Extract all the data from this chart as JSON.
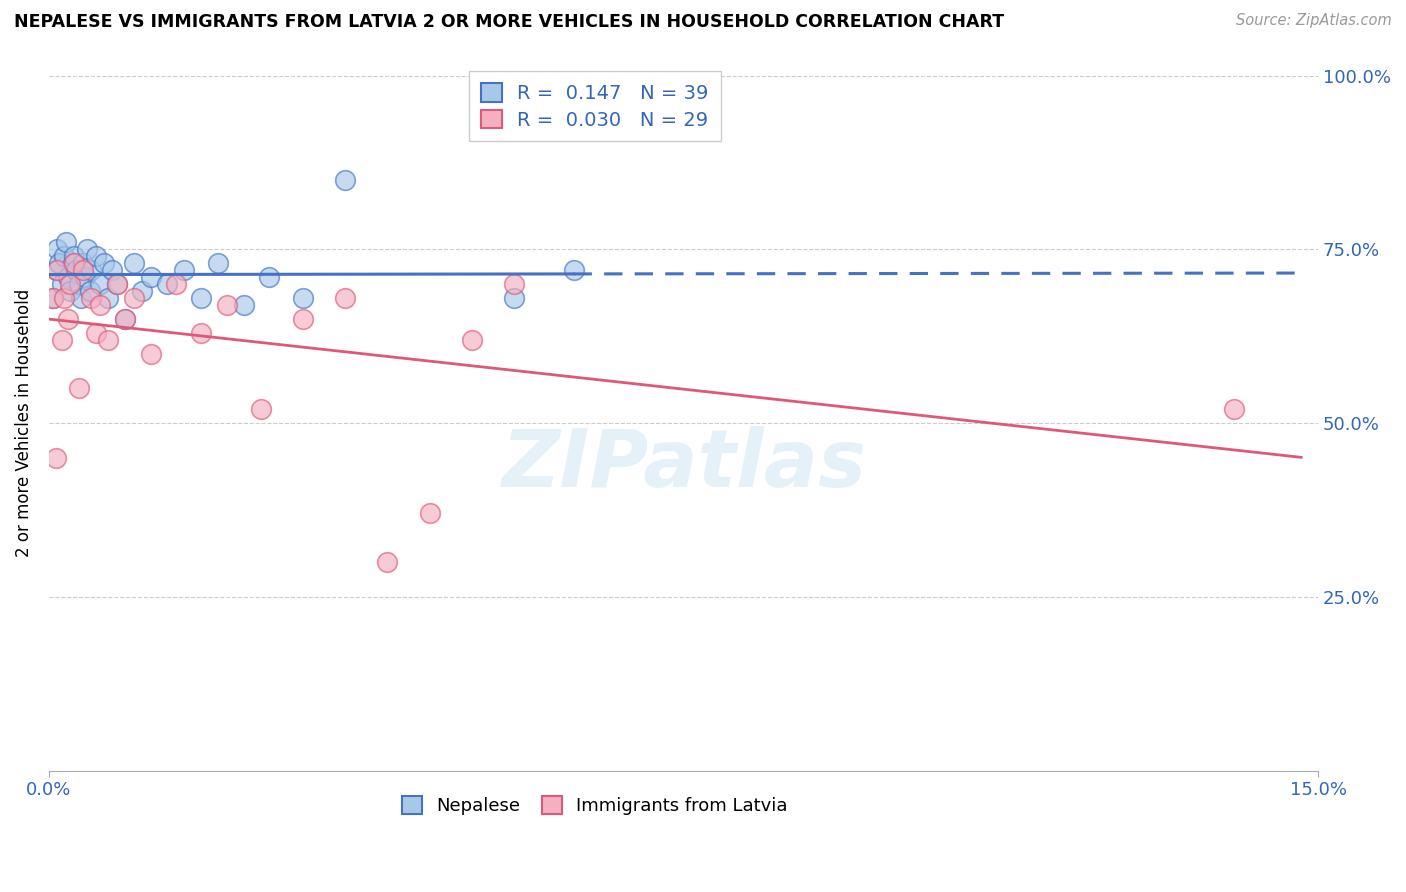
{
  "title": "NEPALESE VS IMMIGRANTS FROM LATVIA 2 OR MORE VEHICLES IN HOUSEHOLD CORRELATION CHART",
  "source": "Source: ZipAtlas.com",
  "ylabel": "2 or more Vehicles in Household",
  "xlim": [
    0.0,
    15.0
  ],
  "ylim": [
    0.0,
    100.0
  ],
  "legend_blue": {
    "R": "0.147",
    "N": "39",
    "label": "Nepalese"
  },
  "legend_pink": {
    "R": "0.030",
    "N": "29",
    "label": "Immigrants from Latvia"
  },
  "color_blue": "#a8c8e8",
  "color_pink": "#f4b0c0",
  "line_blue": "#4472c4",
  "line_pink": "#e05878",
  "watermark": "ZIPatlas",
  "nepalese_x": [
    0.05,
    0.08,
    0.1,
    0.12,
    0.15,
    0.18,
    0.2,
    0.22,
    0.25,
    0.28,
    0.3,
    0.32,
    0.35,
    0.38,
    0.4,
    0.42,
    0.45,
    0.48,
    0.5,
    0.55,
    0.6,
    0.65,
    0.7,
    0.75,
    0.8,
    0.9,
    1.0,
    1.1,
    1.2,
    1.4,
    1.6,
    1.8,
    2.0,
    2.3,
    2.6,
    3.0,
    3.5,
    5.5,
    6.2
  ],
  "nepalese_y": [
    68,
    72,
    75,
    73,
    70,
    74,
    76,
    71,
    69,
    73,
    74,
    72,
    70,
    68,
    73,
    71,
    75,
    69,
    72,
    74,
    70,
    73,
    68,
    72,
    70,
    65,
    73,
    69,
    71,
    70,
    72,
    68,
    73,
    67,
    71,
    68,
    85,
    68,
    72
  ],
  "latvia_x": [
    0.05,
    0.08,
    0.1,
    0.15,
    0.18,
    0.22,
    0.25,
    0.3,
    0.35,
    0.4,
    0.5,
    0.55,
    0.6,
    0.7,
    0.8,
    0.9,
    1.0,
    1.2,
    1.5,
    1.8,
    2.1,
    2.5,
    3.0,
    3.5,
    4.0,
    4.5,
    5.0,
    5.5,
    14.0
  ],
  "latvia_y": [
    68,
    45,
    72,
    62,
    68,
    65,
    70,
    73,
    55,
    72,
    68,
    63,
    67,
    62,
    70,
    65,
    68,
    60,
    70,
    63,
    67,
    52,
    65,
    68,
    30,
    37,
    62,
    70,
    52
  ]
}
